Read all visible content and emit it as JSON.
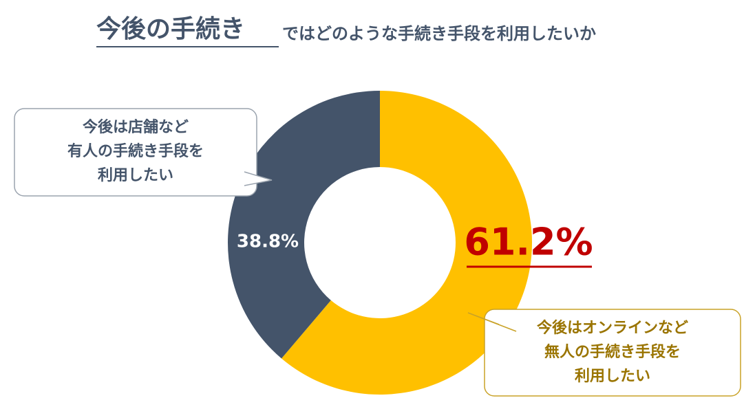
{
  "chart_data": {
    "type": "donut",
    "title_parts": [
      "今後の手続き",
      "ではどのような手続き手段を利用したいか"
    ],
    "categories": [
      [
        "今後はオンラインなど",
        "無人の手続き手段を",
        "利用したい"
      ],
      [
        "今後は店舗など",
        "有人の手続き手段を",
        "利用したい"
      ]
    ],
    "values": [
      61.2,
      38.8
    ],
    "value_labels": [
      "61.2%",
      "38.8%"
    ],
    "colors": [
      "#FFC000",
      "#44546A"
    ]
  }
}
